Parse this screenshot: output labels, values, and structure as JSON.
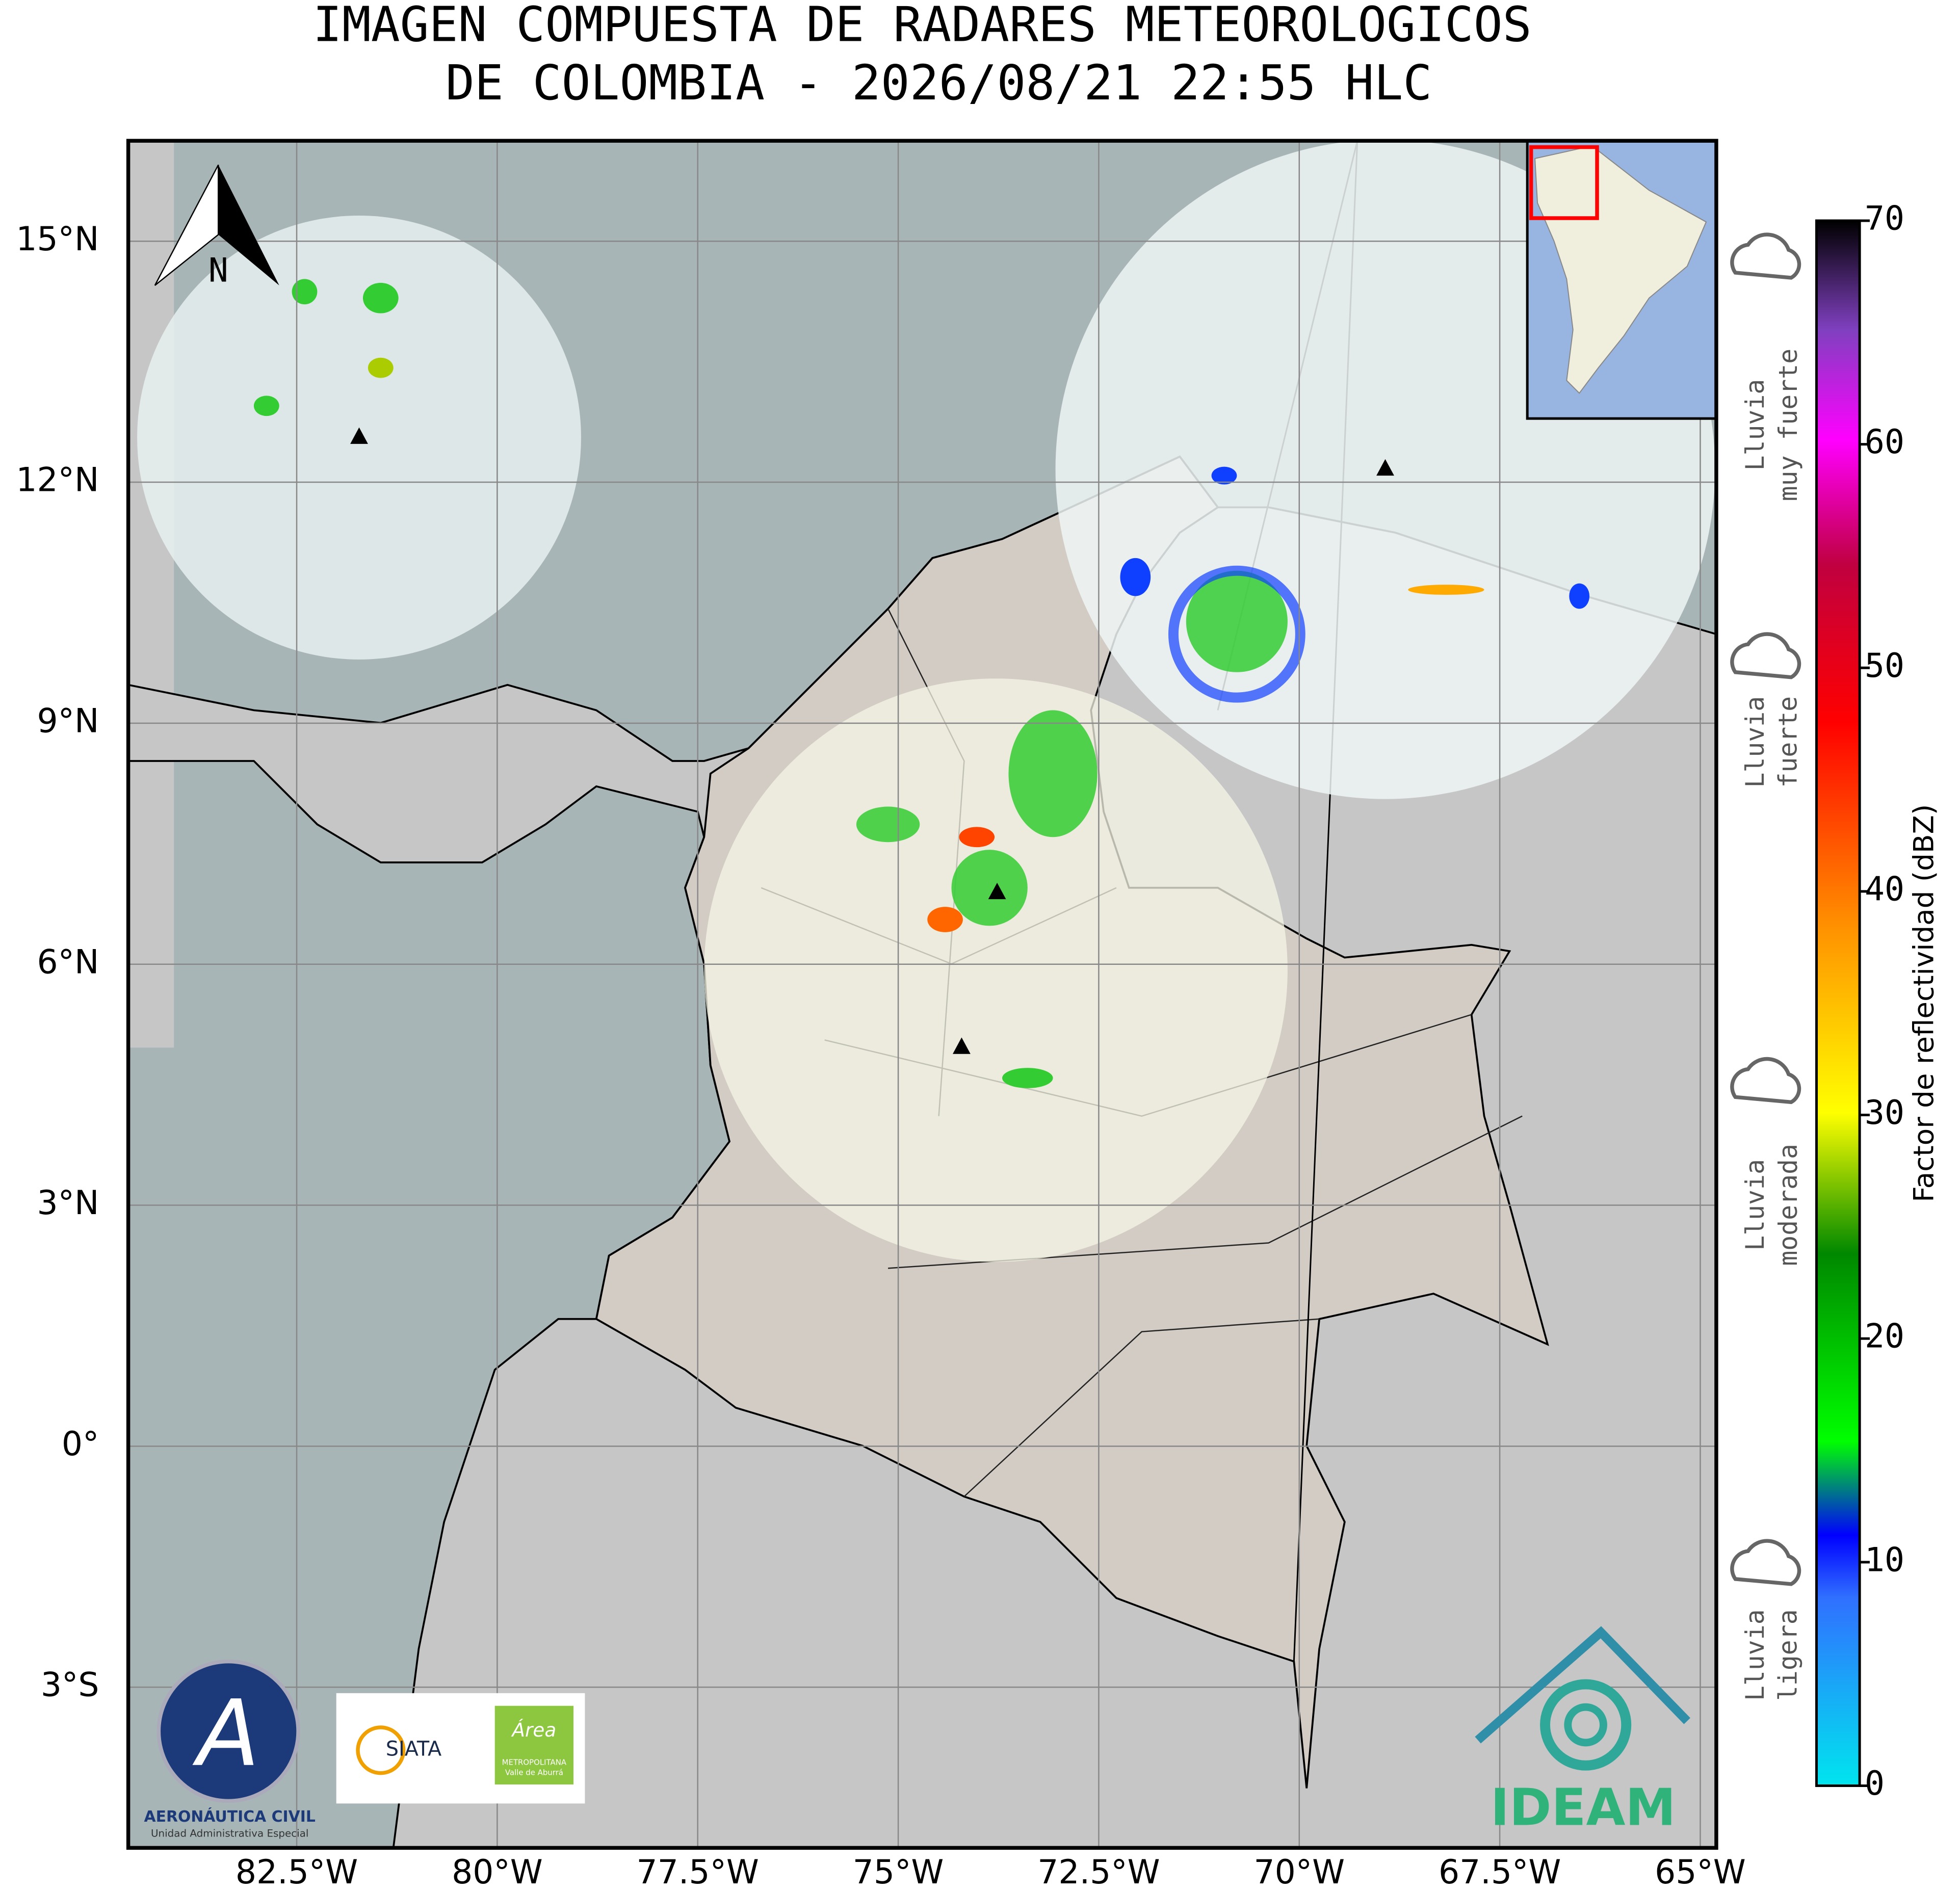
{
  "title": [
    "IMAGEN COMPUESTA DE RADARES METEOROLOGICOS",
    "DE COLOMBIA - 2026/08/21 22:55 HLC"
  ],
  "map": {
    "lonlim": [
      -84.6,
      -64.8
    ],
    "latlim": [
      -5,
      16.25
    ],
    "lon_ticks": [
      {
        "value": -82.5,
        "label": "82.5°W"
      },
      {
        "value": -80,
        "label": "80°W"
      },
      {
        "value": -77.5,
        "label": "77.5°W"
      },
      {
        "value": -75,
        "label": "75°W"
      },
      {
        "value": -72.5,
        "label": "72.5°W"
      },
      {
        "value": -70,
        "label": "70°W"
      },
      {
        "value": -67.5,
        "label": "67.5°W"
      },
      {
        "value": -65,
        "label": "65°W"
      }
    ],
    "lat_ticks": [
      {
        "value": 15,
        "label": "15°N"
      },
      {
        "value": 12,
        "label": "12°N"
      },
      {
        "value": 9,
        "label": "9°N"
      },
      {
        "value": 6,
        "label": "6°N"
      },
      {
        "value": 3,
        "label": "3°N"
      },
      {
        "value": 0,
        "label": "0°"
      },
      {
        "value": -3,
        "label": "3°S"
      }
    ],
    "north_label": "N"
  },
  "colorbar": {
    "label": "Factor de reflectividad (dBZ)",
    "lim": [
      0,
      70
    ],
    "ticks": [
      0,
      10,
      20,
      30,
      40,
      50,
      60,
      70
    ]
  },
  "rain_categories": [
    [
      "Lluvia",
      "muy fuerte"
    ],
    [
      "Lluvia",
      "fuerte"
    ],
    [
      "Lluvia",
      "moderada"
    ],
    [
      "Lluvia",
      "ligera"
    ]
  ],
  "logos": {
    "aerocivil": [
      "AERONÁUTICA CIVIL",
      "Unidad Administrativa Especial"
    ],
    "siata": "SIATA",
    "area": [
      "Área",
      "METROPOLITANA",
      "Valle de Aburrá"
    ],
    "ideam": "IDEAM"
  }
}
